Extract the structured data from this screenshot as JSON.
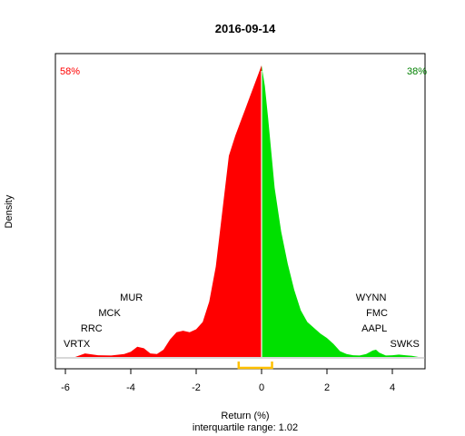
{
  "chart_data": {
    "type": "area",
    "title": "2016-09-14",
    "xlabel": "Return (%)",
    "ylabel": "Density",
    "subtitle": "interquartile range: 1.02",
    "xlim": [
      -6.5,
      5.2
    ],
    "ylim": [
      0,
      1
    ],
    "x_ticks": [
      -6,
      -4,
      -2,
      0,
      2,
      4
    ],
    "x_tick_labels": [
      "-6",
      "-4",
      "-2",
      "0",
      "2",
      "4"
    ],
    "negative_share_label": "58%",
    "positive_share_label": "38%",
    "colors": {
      "negative": "#ff0000",
      "positive": "#00e000",
      "negative_text": "#ff0000",
      "positive_text": "#008000",
      "iqr": "#ffc000"
    },
    "iqr_range": [
      -0.7,
      0.32
    ],
    "density_curve": {
      "x": [
        -5.7,
        -5.4,
        -5.0,
        -4.6,
        -4.2,
        -4.0,
        -3.8,
        -3.6,
        -3.4,
        -3.2,
        -3.0,
        -2.8,
        -2.6,
        -2.4,
        -2.2,
        -2.0,
        -1.8,
        -1.6,
        -1.4,
        -1.2,
        -1.0,
        -0.8,
        -0.6,
        -0.5,
        -0.4,
        -0.3,
        -0.2,
        -0.1,
        0.0,
        0.1,
        0.2,
        0.3,
        0.4,
        0.6,
        0.8,
        1.0,
        1.2,
        1.4,
        1.6,
        1.8,
        2.0,
        2.2,
        2.4,
        2.6,
        2.8,
        3.0,
        3.2,
        3.4,
        3.5,
        3.6,
        3.8,
        4.0,
        4.2,
        4.4,
        4.6,
        4.8
      ],
      "y": [
        0.0,
        0.012,
        0.006,
        0.005,
        0.01,
        0.018,
        0.035,
        0.03,
        0.012,
        0.01,
        0.025,
        0.06,
        0.085,
        0.09,
        0.085,
        0.095,
        0.12,
        0.19,
        0.31,
        0.5,
        0.69,
        0.76,
        0.82,
        0.85,
        0.88,
        0.91,
        0.94,
        0.97,
        1.0,
        0.93,
        0.82,
        0.7,
        0.58,
        0.43,
        0.32,
        0.23,
        0.16,
        0.12,
        0.1,
        0.08,
        0.065,
        0.045,
        0.02,
        0.01,
        0.006,
        0.005,
        0.01,
        0.022,
        0.025,
        0.015,
        0.005,
        0.006,
        0.008,
        0.006,
        0.004,
        0.0
      ]
    },
    "annotations": [
      {
        "label": "MUR",
        "x": -3.98,
        "level": 4
      },
      {
        "label": "MCK",
        "x": -4.65,
        "level": 3
      },
      {
        "label": "RRC",
        "x": -5.2,
        "level": 2
      },
      {
        "label": "VRTX",
        "x": -5.65,
        "level": 1
      },
      {
        "label": "WYNN",
        "x": 3.35,
        "level": 4
      },
      {
        "label": "FMC",
        "x": 3.53,
        "level": 3
      },
      {
        "label": "AAPL",
        "x": 3.45,
        "level": 2
      },
      {
        "label": "SWKS",
        "x": 4.38,
        "level": 1
      }
    ]
  }
}
